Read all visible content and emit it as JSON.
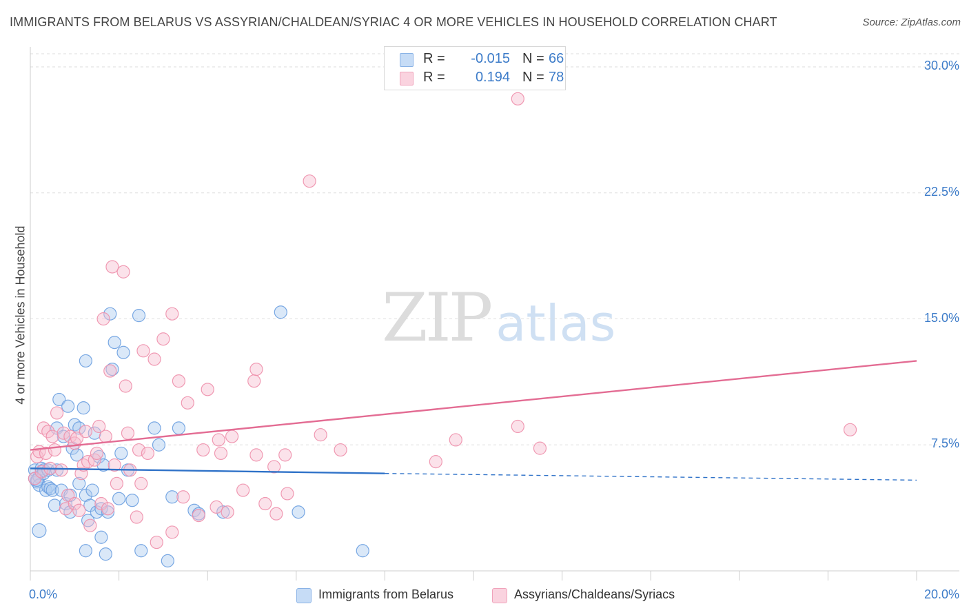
{
  "title": "IMMIGRANTS FROM BELARUS VS ASSYRIAN/CHALDEAN/SYRIAC 4 OR MORE VEHICLES IN HOUSEHOLD CORRELATION CHART",
  "source": "Source: ZipAtlas.com",
  "watermark": {
    "zip": "ZIP",
    "atlas": "atlas"
  },
  "stats": [
    {
      "r_label": "R =",
      "r_value": "-0.015",
      "n_label": "N =",
      "n_value": "66",
      "color": "#aecbf0"
    },
    {
      "r_label": "R =",
      "r_value": "0.194",
      "n_label": "N =",
      "n_value": "78",
      "color": "#f7bfd0"
    }
  ],
  "legend": [
    {
      "label": "Immigrants from Belarus",
      "color": "#aecbf0"
    },
    {
      "label": "Assyrians/Chaldeans/Syriacs",
      "color": "#f7bfd0"
    }
  ],
  "chart_data": {
    "type": "scatter",
    "title": "IMMIGRANTS FROM BELARUS VS ASSYRIAN/CHALDEAN/SYRIAC 4 OR MORE VEHICLES IN HOUSEHOLD CORRELATION CHART",
    "xlabel": "",
    "ylabel": "4 or more Vehicles in Household",
    "xlim": [
      0,
      20
    ],
    "ylim": [
      0,
      30
    ],
    "x_ticks": [
      "0.0%",
      "20.0%"
    ],
    "y_ticks": [
      {
        "value": 7.5,
        "label": "7.5%"
      },
      {
        "value": 15,
        "label": "15.0%"
      },
      {
        "value": 22.5,
        "label": "22.5%"
      },
      {
        "value": 30,
        "label": "30.0%"
      }
    ],
    "grid": true,
    "series": [
      {
        "name": "Immigrants from Belarus",
        "color": "#aecbf0",
        "stroke": "#6a9fe0",
        "trend": {
          "x0": 0,
          "y0": 6.1,
          "x1": 8,
          "y1": 5.8,
          "dash_to_x": 20,
          "dash_to_y": 5.4,
          "color": "#2f72c8"
        },
        "points": [
          [
            0.1,
            6.0
          ],
          [
            0.1,
            5.5
          ],
          [
            0.15,
            5.3
          ],
          [
            0.2,
            5.6
          ],
          [
            0.2,
            5.1
          ],
          [
            0.25,
            6.1
          ],
          [
            0.3,
            5.8
          ],
          [
            0.3,
            6.0
          ],
          [
            0.35,
            4.8
          ],
          [
            0.4,
            5.0
          ],
          [
            0.4,
            6.0
          ],
          [
            0.45,
            4.9
          ],
          [
            0.5,
            4.8
          ],
          [
            0.55,
            3.9
          ],
          [
            0.6,
            6.0
          ],
          [
            0.6,
            8.5
          ],
          [
            0.65,
            10.2
          ],
          [
            0.7,
            4.8
          ],
          [
            0.75,
            8.0
          ],
          [
            0.8,
            4.0
          ],
          [
            0.85,
            9.8
          ],
          [
            0.9,
            4.5
          ],
          [
            0.9,
            3.5
          ],
          [
            0.95,
            7.3
          ],
          [
            1.0,
            8.7
          ],
          [
            1.05,
            6.9
          ],
          [
            1.1,
            8.5
          ],
          [
            1.1,
            5.2
          ],
          [
            1.2,
            9.7
          ],
          [
            1.25,
            4.5
          ],
          [
            1.25,
            12.5
          ],
          [
            1.3,
            3.0
          ],
          [
            1.35,
            3.9
          ],
          [
            1.4,
            4.8
          ],
          [
            1.45,
            8.2
          ],
          [
            1.5,
            3.5
          ],
          [
            1.55,
            6.8
          ],
          [
            1.6,
            3.7
          ],
          [
            1.6,
            2.0
          ],
          [
            1.65,
            6.3
          ],
          [
            1.7,
            1.0
          ],
          [
            1.75,
            3.5
          ],
          [
            1.8,
            15.3
          ],
          [
            1.85,
            12.0
          ],
          [
            1.9,
            13.6
          ],
          [
            2.0,
            4.3
          ],
          [
            2.05,
            7.0
          ],
          [
            2.1,
            13.0
          ],
          [
            2.2,
            6.0
          ],
          [
            2.3,
            4.2
          ],
          [
            2.45,
            15.2
          ],
          [
            2.5,
            1.2
          ],
          [
            2.8,
            8.5
          ],
          [
            2.9,
            7.5
          ],
          [
            3.1,
            0.6
          ],
          [
            3.2,
            4.4
          ],
          [
            3.35,
            8.5
          ],
          [
            3.7,
            3.6
          ],
          [
            3.8,
            3.4
          ],
          [
            4.35,
            3.5
          ],
          [
            5.65,
            15.4
          ],
          [
            6.05,
            3.5
          ],
          [
            7.5,
            1.2
          ],
          [
            0.2,
            2.4
          ],
          [
            1.25,
            1.2
          ],
          [
            0.15,
            5.4
          ]
        ]
      },
      {
        "name": "Assyrians/Chaldeans/Syriacs",
        "color": "#f7bfd0",
        "stroke": "#ee8fab",
        "trend": {
          "x0": 0,
          "y0": 7.2,
          "x1": 20,
          "y1": 12.5,
          "color": "#e36c93"
        },
        "points": [
          [
            0.1,
            5.5
          ],
          [
            0.15,
            6.8
          ],
          [
            0.2,
            7.1
          ],
          [
            0.25,
            5.9
          ],
          [
            0.3,
            8.5
          ],
          [
            0.35,
            7.0
          ],
          [
            0.4,
            8.3
          ],
          [
            0.45,
            6.1
          ],
          [
            0.5,
            8.0
          ],
          [
            0.55,
            7.2
          ],
          [
            0.6,
            9.4
          ],
          [
            0.7,
            6.0
          ],
          [
            0.75,
            8.2
          ],
          [
            0.8,
            3.7
          ],
          [
            0.85,
            4.5
          ],
          [
            0.9,
            8.0
          ],
          [
            1.0,
            4.0
          ],
          [
            1.0,
            7.6
          ],
          [
            1.05,
            7.9
          ],
          [
            1.1,
            3.6
          ],
          [
            1.15,
            5.8
          ],
          [
            1.2,
            6.3
          ],
          [
            1.25,
            8.3
          ],
          [
            1.3,
            6.5
          ],
          [
            1.35,
            2.7
          ],
          [
            1.45,
            6.6
          ],
          [
            1.5,
            7.0
          ],
          [
            1.55,
            8.6
          ],
          [
            1.6,
            4.0
          ],
          [
            1.65,
            15.0
          ],
          [
            1.7,
            8.0
          ],
          [
            1.75,
            3.7
          ],
          [
            1.8,
            11.9
          ],
          [
            1.85,
            18.1
          ],
          [
            1.9,
            6.3
          ],
          [
            1.95,
            5.2
          ],
          [
            2.1,
            17.8
          ],
          [
            2.15,
            11.0
          ],
          [
            2.2,
            8.2
          ],
          [
            2.25,
            6.0
          ],
          [
            2.4,
            3.2
          ],
          [
            2.45,
            7.2
          ],
          [
            2.5,
            5.2
          ],
          [
            2.55,
            13.1
          ],
          [
            2.65,
            7.0
          ],
          [
            2.8,
            12.6
          ],
          [
            2.85,
            1.7
          ],
          [
            3.0,
            13.8
          ],
          [
            3.2,
            15.3
          ],
          [
            3.2,
            2.3
          ],
          [
            3.35,
            11.3
          ],
          [
            3.45,
            4.4
          ],
          [
            3.55,
            10.0
          ],
          [
            3.8,
            3.3
          ],
          [
            3.9,
            7.2
          ],
          [
            4.0,
            10.8
          ],
          [
            4.2,
            3.8
          ],
          [
            4.25,
            7.8
          ],
          [
            4.3,
            7.0
          ],
          [
            4.45,
            3.5
          ],
          [
            4.55,
            8.0
          ],
          [
            4.8,
            4.8
          ],
          [
            5.05,
            11.3
          ],
          [
            5.1,
            12.0
          ],
          [
            5.1,
            6.9
          ],
          [
            5.3,
            4.0
          ],
          [
            5.5,
            6.2
          ],
          [
            5.55,
            3.4
          ],
          [
            5.75,
            6.9
          ],
          [
            5.8,
            4.6
          ],
          [
            6.3,
            23.2
          ],
          [
            6.55,
            8.1
          ],
          [
            7.0,
            7.2
          ],
          [
            9.15,
            6.5
          ],
          [
            9.6,
            7.8
          ],
          [
            11.0,
            8.6
          ],
          [
            11.5,
            7.3
          ],
          [
            18.5,
            8.4
          ]
        ]
      }
    ],
    "extra_points": [
      {
        "series": "Assyrians/Chaldeans/Syriacs",
        "x": 11.0,
        "y": 28.1
      }
    ]
  }
}
